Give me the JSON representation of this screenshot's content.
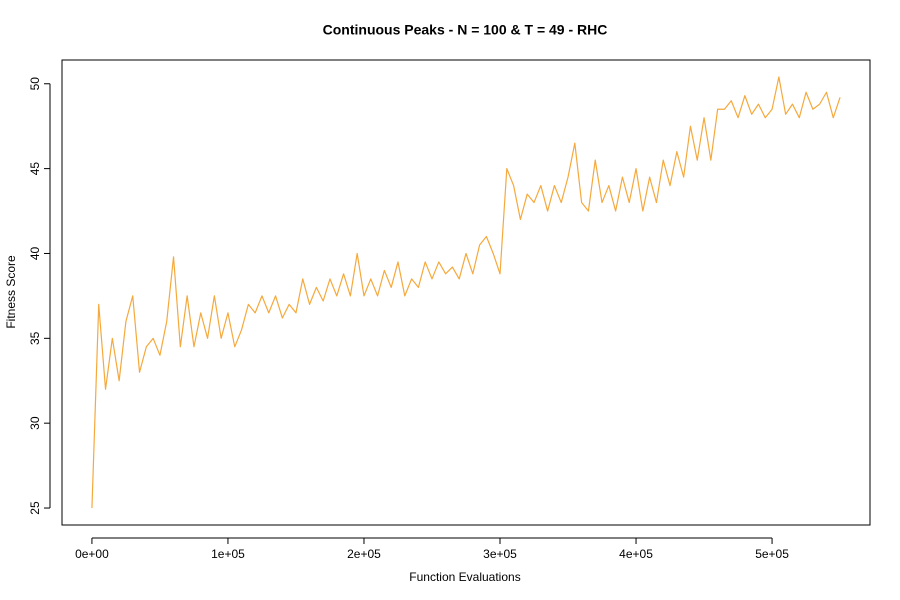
{
  "chart_data": {
    "type": "line",
    "title": "Continuous Peaks - N = 100 & T = 49 - RHC",
    "x_label": "Function Evaluations",
    "y_label": "Fitness Score",
    "xlim": [
      -22000,
      572000
    ],
    "ylim": [
      24,
      51.4
    ],
    "xticks": [
      {
        "value": 0,
        "label": "0e+00"
      },
      {
        "value": 100000,
        "label": "1e+05"
      },
      {
        "value": 200000,
        "label": "2e+05"
      },
      {
        "value": 300000,
        "label": "3e+05"
      },
      {
        "value": 400000,
        "label": "4e+05"
      },
      {
        "value": 500000,
        "label": "5e+05"
      }
    ],
    "yticks": [
      25,
      30,
      35,
      40,
      45,
      50
    ],
    "x": [
      0,
      5000,
      10000,
      15000,
      20000,
      25000,
      30000,
      35000,
      40000,
      45000,
      50000,
      55000,
      60000,
      65000,
      70000,
      75000,
      80000,
      85000,
      90000,
      95000,
      100000,
      105000,
      110000,
      115000,
      120000,
      125000,
      130000,
      135000,
      140000,
      145000,
      150000,
      155000,
      160000,
      165000,
      170000,
      175000,
      180000,
      185000,
      190000,
      195000,
      200000,
      205000,
      210000,
      215000,
      220000,
      225000,
      230000,
      235000,
      240000,
      245000,
      250000,
      255000,
      260000,
      265000,
      270000,
      275000,
      280000,
      285000,
      290000,
      295000,
      300000,
      305000,
      310000,
      315000,
      320000,
      325000,
      330000,
      335000,
      340000,
      345000,
      350000,
      355000,
      360000,
      365000,
      370000,
      375000,
      380000,
      385000,
      390000,
      395000,
      400000,
      405000,
      410000,
      415000,
      420000,
      425000,
      430000,
      435000,
      440000,
      445000,
      450000,
      455000,
      460000,
      465000,
      470000,
      475000,
      480000,
      485000,
      490000,
      495000,
      500000,
      505000,
      510000,
      515000,
      520000,
      525000,
      530000,
      535000,
      540000,
      545000,
      550000
    ],
    "series": [
      {
        "color": "#f5a93c",
        "values": [
          25,
          37,
          32,
          35,
          32.5,
          36,
          37.5,
          33,
          34.5,
          35,
          34,
          36,
          39.8,
          34.5,
          37.5,
          34.5,
          36.5,
          35,
          37.5,
          35,
          36.5,
          34.5,
          35.5,
          37,
          36.5,
          37.5,
          36.5,
          37.5,
          36.2,
          37,
          36.5,
          38.5,
          37,
          38,
          37.2,
          38.5,
          37.5,
          38.8,
          37.5,
          40,
          37.5,
          38.5,
          37.5,
          39,
          38,
          39.5,
          37.5,
          38.5,
          38,
          39.5,
          38.5,
          39.5,
          38.8,
          39.2,
          38.5,
          40,
          38.8,
          40.5,
          41,
          40,
          38.8,
          45,
          44,
          42,
          43.5,
          43,
          44,
          42.5,
          44,
          43,
          44.5,
          46.5,
          43,
          42.5,
          45.5,
          43,
          44,
          42.5,
          44.5,
          43,
          45,
          42.5,
          44.5,
          43,
          45.5,
          44,
          46,
          44.5,
          47.5,
          45.5,
          48,
          45.5,
          48.5,
          48.5,
          49,
          48,
          49.3,
          48.2,
          48.8,
          48,
          48.5,
          50.4,
          48.2,
          48.8,
          48,
          49.5,
          48.5,
          48.8,
          49.5,
          48,
          49.2
        ]
      }
    ]
  }
}
